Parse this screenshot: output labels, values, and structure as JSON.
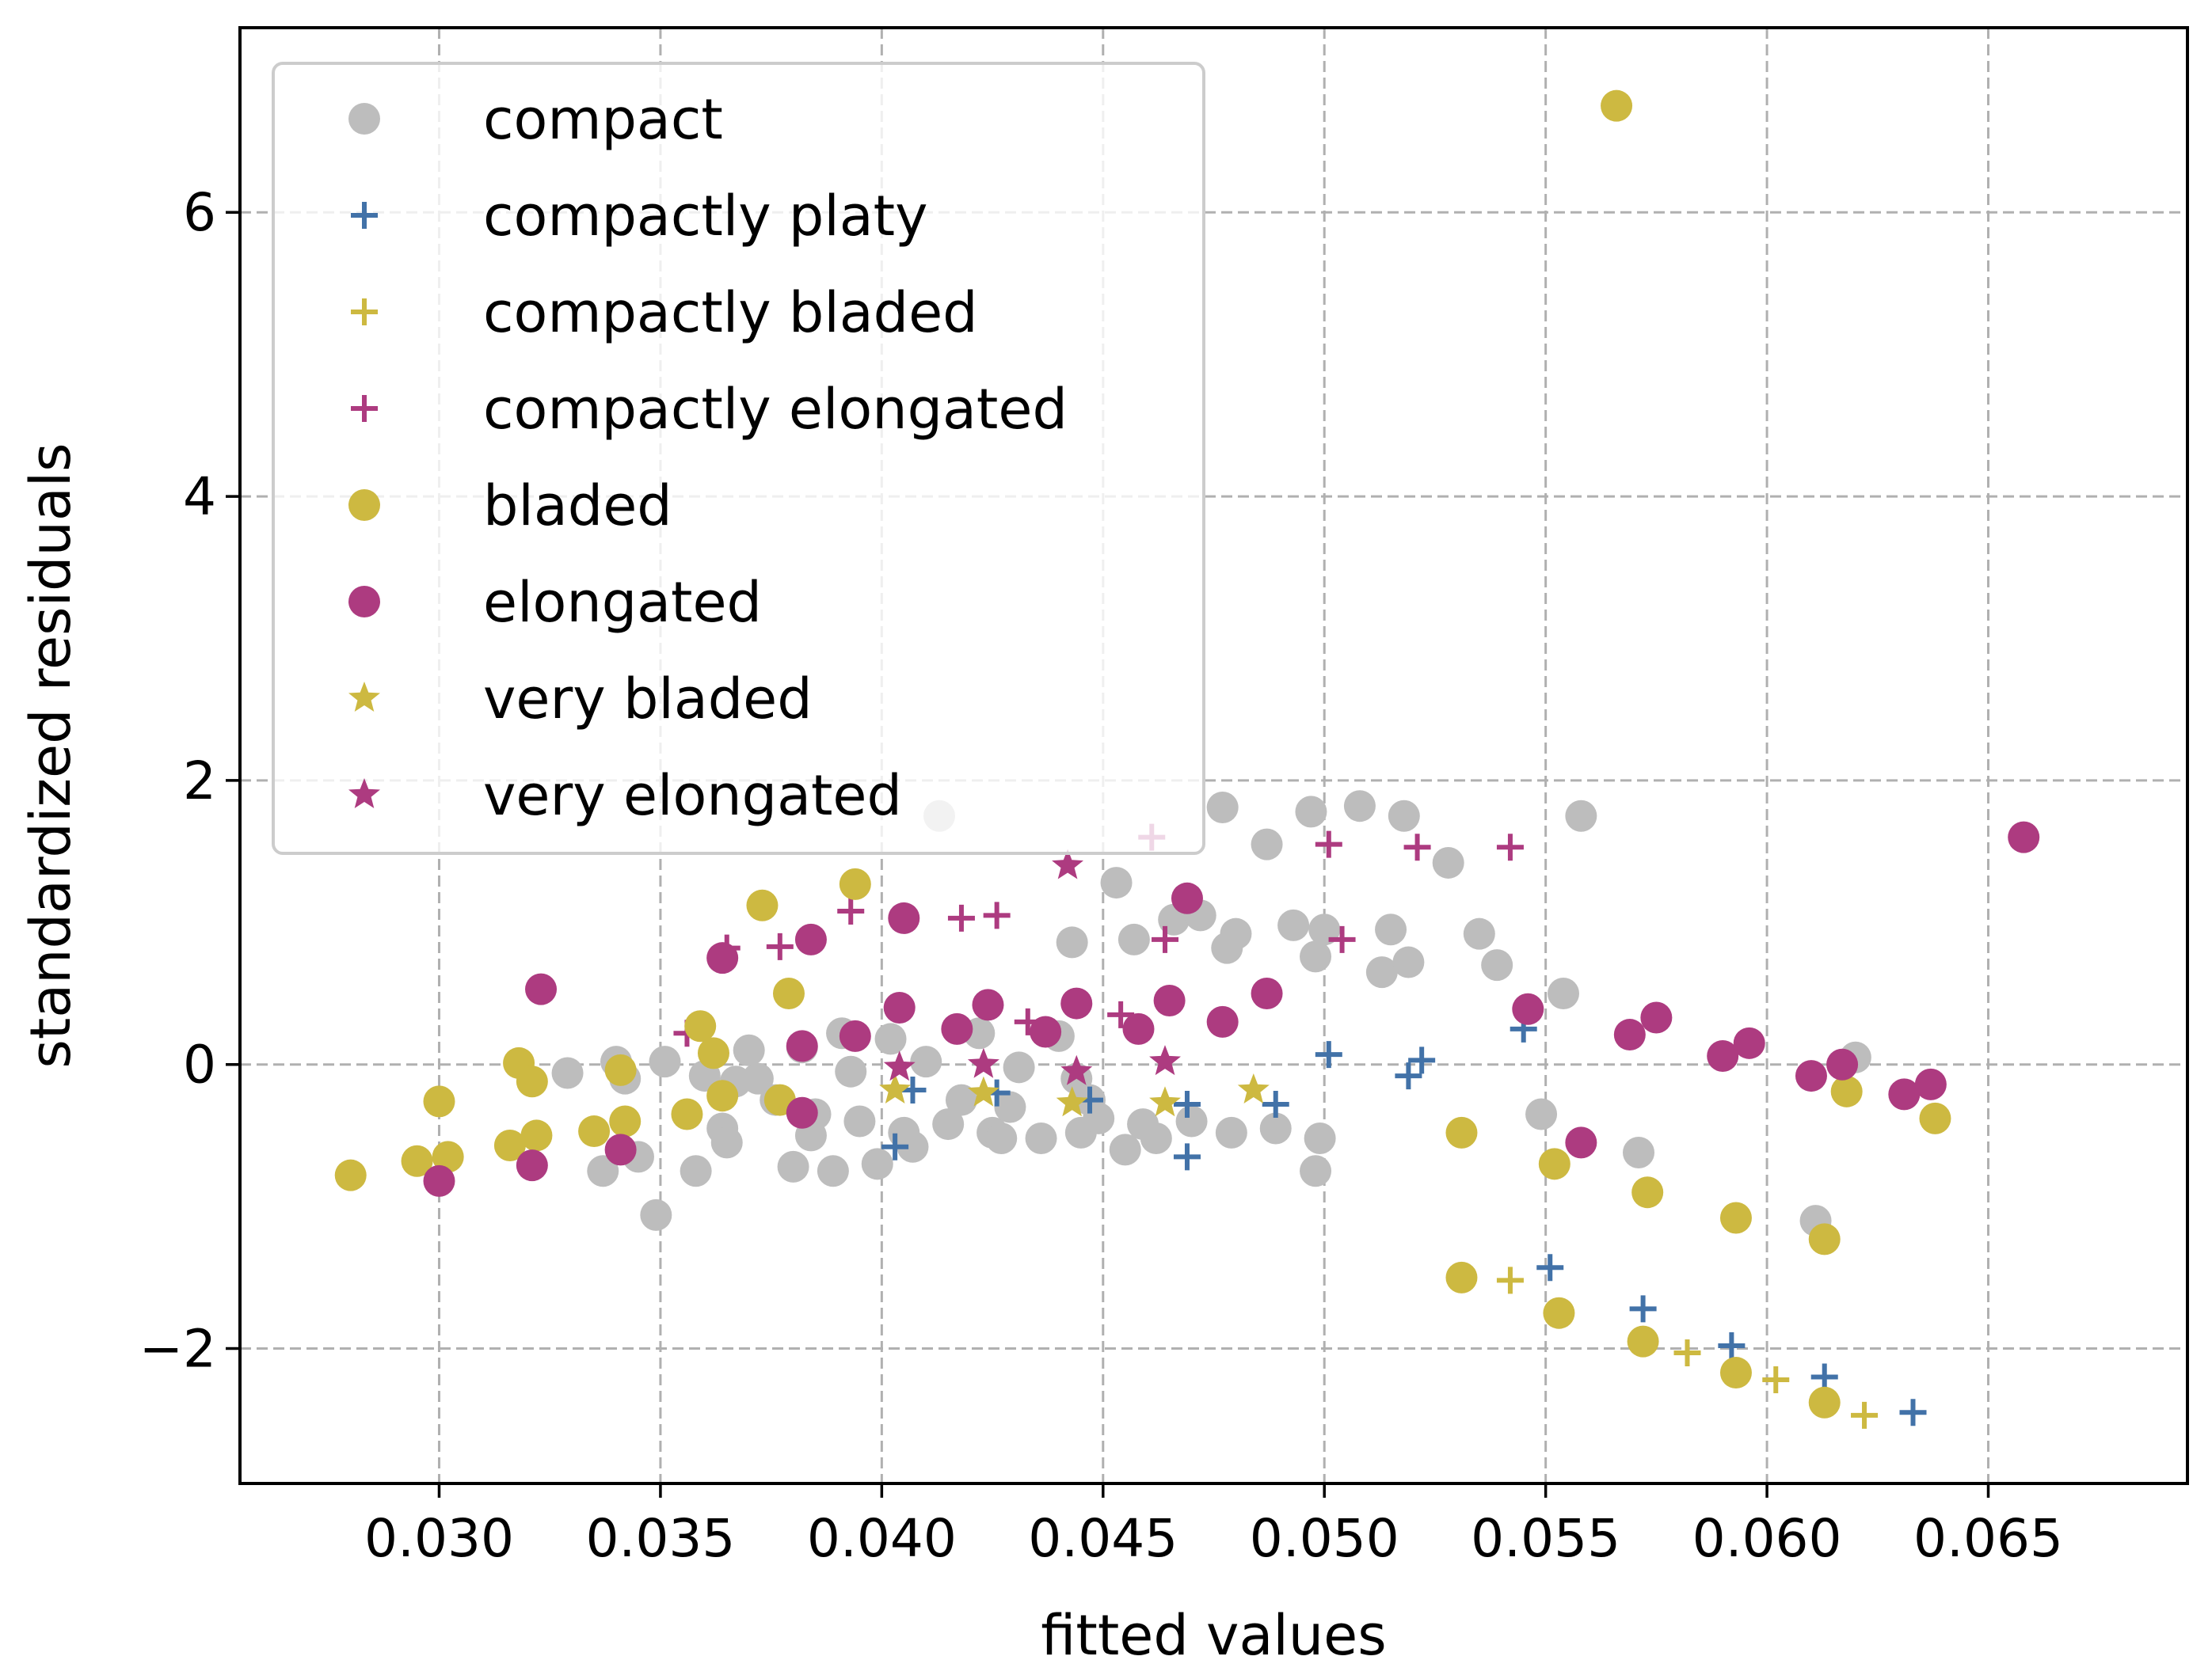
{
  "chart_data": {
    "type": "scatter",
    "title": "",
    "xlabel": "fitted values",
    "ylabel": "standardized residuals",
    "xlim": [
      0.0255,
      0.0695
    ],
    "ylim": [
      -2.95,
      7.3
    ],
    "xticks": [
      0.03,
      0.035,
      0.04,
      0.045,
      0.05,
      0.055,
      0.06,
      0.065
    ],
    "xtick_labels": [
      "0.030",
      "0.035",
      "0.040",
      "0.045",
      "0.050",
      "0.055",
      "0.060",
      "0.065"
    ],
    "yticks": [
      -2,
      0,
      2,
      4,
      6
    ],
    "ytick_labels": [
      "−2",
      "0",
      "2",
      "4",
      "6"
    ],
    "grid": true,
    "legend_position": "upper-left",
    "series": [
      {
        "name": "compact",
        "marker": "circle",
        "color": "#bdbdbd",
        "points": [
          [
            0.0329,
            -0.06
          ],
          [
            0.0337,
            -0.75
          ],
          [
            0.034,
            0.02
          ],
          [
            0.0342,
            -0.1
          ],
          [
            0.0345,
            -0.65
          ],
          [
            0.0349,
            -1.06
          ],
          [
            0.0351,
            0.02
          ],
          [
            0.0358,
            -0.75
          ],
          [
            0.036,
            -0.08
          ],
          [
            0.0364,
            -0.45
          ],
          [
            0.0365,
            -0.55
          ],
          [
            0.0367,
            -0.12
          ],
          [
            0.037,
            0.1
          ],
          [
            0.0372,
            -0.1
          ],
          [
            0.0376,
            -0.25
          ],
          [
            0.038,
            -0.72
          ],
          [
            0.0382,
            0.12
          ],
          [
            0.0384,
            -0.5
          ],
          [
            0.0385,
            -0.35
          ],
          [
            0.0389,
            -0.75
          ],
          [
            0.0391,
            0.22
          ],
          [
            0.0393,
            -0.05
          ],
          [
            0.0395,
            -0.4
          ],
          [
            0.0399,
            -0.7
          ],
          [
            0.0402,
            0.18
          ],
          [
            0.0405,
            -0.48
          ],
          [
            0.0407,
            -0.58
          ],
          [
            0.041,
            0.02
          ],
          [
            0.0413,
            1.75
          ],
          [
            0.0415,
            -0.42
          ],
          [
            0.0418,
            -0.25
          ],
          [
            0.0422,
            0.22
          ],
          [
            0.0425,
            -0.48
          ],
          [
            0.0427,
            -0.52
          ],
          [
            0.0429,
            -0.3
          ],
          [
            0.0431,
            -0.02
          ],
          [
            0.0436,
            -0.52
          ],
          [
            0.044,
            0.2
          ],
          [
            0.0443,
            0.86
          ],
          [
            0.0444,
            -0.1
          ],
          [
            0.0445,
            -0.48
          ],
          [
            0.0447,
            -0.25
          ],
          [
            0.0449,
            -0.38
          ],
          [
            0.0453,
            1.28
          ],
          [
            0.0455,
            -0.6
          ],
          [
            0.0457,
            0.88
          ],
          [
            0.0459,
            -0.42
          ],
          [
            0.0462,
            -0.52
          ],
          [
            0.0466,
            1.02
          ],
          [
            0.047,
            -0.4
          ],
          [
            0.0472,
            1.05
          ],
          [
            0.0477,
            1.81
          ],
          [
            0.0478,
            0.82
          ],
          [
            0.048,
            0.92
          ],
          [
            0.0479,
            -0.48
          ],
          [
            0.0487,
            1.55
          ],
          [
            0.0489,
            -0.45
          ],
          [
            0.0493,
            0.98
          ],
          [
            0.0497,
            1.78
          ],
          [
            0.0498,
            -0.75
          ],
          [
            0.0498,
            0.76
          ],
          [
            0.0499,
            -0.52
          ],
          [
            0.05,
            0.95
          ],
          [
            0.0508,
            1.82
          ],
          [
            0.0513,
            0.65
          ],
          [
            0.0515,
            0.95
          ],
          [
            0.0518,
            1.75
          ],
          [
            0.0519,
            0.72
          ],
          [
            0.0528,
            1.42
          ],
          [
            0.0535,
            0.92
          ],
          [
            0.0539,
            0.7
          ],
          [
            0.0549,
            -0.35
          ],
          [
            0.0554,
            0.5
          ],
          [
            0.0558,
            1.75
          ],
          [
            0.0571,
            -0.62
          ],
          [
            0.0611,
            -1.1
          ],
          [
            0.062,
            0.05
          ]
        ]
      },
      {
        "name": "compactly platy",
        "marker": "plus",
        "color": "#4272a8",
        "points": [
          [
            0.0403,
            -0.58
          ],
          [
            0.0407,
            -0.18
          ],
          [
            0.0426,
            -0.2
          ],
          [
            0.0447,
            -0.25
          ],
          [
            0.0469,
            -0.28
          ],
          [
            0.0469,
            -0.65
          ],
          [
            0.0489,
            -0.28
          ],
          [
            0.0501,
            0.07
          ],
          [
            0.0519,
            -0.08
          ],
          [
            0.0522,
            0.03
          ],
          [
            0.0545,
            0.25
          ],
          [
            0.0551,
            -1.43
          ],
          [
            0.0572,
            -1.72
          ],
          [
            0.0592,
            -1.98
          ],
          [
            0.0613,
            -2.2
          ],
          [
            0.0633,
            -2.45
          ]
        ]
      },
      {
        "name": "compactly bladed",
        "marker": "plus",
        "color": "#cdb941",
        "points": [
          [
            0.0542,
            -1.52
          ],
          [
            0.0582,
            -2.03
          ],
          [
            0.0602,
            -2.22
          ],
          [
            0.0622,
            -2.47
          ]
        ]
      },
      {
        "name": "compactly elongated",
        "marker": "plus",
        "color": "#ad3b80",
        "points": [
          [
            0.0356,
            0.22
          ],
          [
            0.0365,
            0.82
          ],
          [
            0.0377,
            0.83
          ],
          [
            0.0393,
            1.08
          ],
          [
            0.0418,
            1.03
          ],
          [
            0.0426,
            1.05
          ],
          [
            0.0433,
            0.3
          ],
          [
            0.0454,
            0.35
          ],
          [
            0.0461,
            1.6
          ],
          [
            0.0464,
            0.88
          ],
          [
            0.0501,
            1.55
          ],
          [
            0.0504,
            0.88
          ],
          [
            0.0521,
            1.53
          ],
          [
            0.0542,
            1.53
          ]
        ]
      },
      {
        "name": "bladed",
        "marker": "circle",
        "color": "#cdb941",
        "points": [
          [
            0.028,
            -0.78
          ],
          [
            0.0295,
            -0.68
          ],
          [
            0.03,
            -0.26
          ],
          [
            0.0302,
            -0.65
          ],
          [
            0.0316,
            -0.57
          ],
          [
            0.0318,
            0.01
          ],
          [
            0.0321,
            -0.12
          ],
          [
            0.0322,
            -0.5
          ],
          [
            0.0335,
            -0.47
          ],
          [
            0.0341,
            -0.04
          ],
          [
            0.0342,
            -0.4
          ],
          [
            0.0356,
            -0.35
          ],
          [
            0.0359,
            0.27
          ],
          [
            0.0362,
            0.08
          ],
          [
            0.0364,
            -0.22
          ],
          [
            0.0373,
            1.12
          ],
          [
            0.0377,
            -0.25
          ],
          [
            0.0379,
            0.5
          ],
          [
            0.0394,
            1.27
          ],
          [
            0.0531,
            -1.5
          ],
          [
            0.0531,
            -0.48
          ],
          [
            0.0552,
            -0.7
          ],
          [
            0.0553,
            -1.75
          ],
          [
            0.0566,
            6.75
          ],
          [
            0.0572,
            -1.95
          ],
          [
            0.0573,
            -0.9
          ],
          [
            0.0593,
            -1.08
          ],
          [
            0.0593,
            -2.17
          ],
          [
            0.0613,
            -2.38
          ],
          [
            0.0613,
            -1.23
          ],
          [
            0.0618,
            -0.19
          ],
          [
            0.0638,
            -0.38
          ]
        ]
      },
      {
        "name": "elongated",
        "marker": "circle",
        "color": "#ad3b80",
        "points": [
          [
            0.03,
            -0.82
          ],
          [
            0.0321,
            -0.71
          ],
          [
            0.0323,
            0.53
          ],
          [
            0.0341,
            -0.6
          ],
          [
            0.0364,
            0.75
          ],
          [
            0.0382,
            0.13
          ],
          [
            0.0382,
            -0.34
          ],
          [
            0.0384,
            0.88
          ],
          [
            0.0394,
            0.2
          ],
          [
            0.0405,
            1.03
          ],
          [
            0.0404,
            0.4
          ],
          [
            0.0417,
            0.25
          ],
          [
            0.0424,
            0.42
          ],
          [
            0.0437,
            0.23
          ],
          [
            0.0444,
            0.43
          ],
          [
            0.0458,
            0.25
          ],
          [
            0.0465,
            0.45
          ],
          [
            0.0469,
            1.17
          ],
          [
            0.0477,
            0.3
          ],
          [
            0.0487,
            0.5
          ],
          [
            0.0546,
            0.39
          ],
          [
            0.0558,
            -0.55
          ],
          [
            0.0569,
            0.21
          ],
          [
            0.0575,
            0.33
          ],
          [
            0.059,
            0.06
          ],
          [
            0.0596,
            0.15
          ],
          [
            0.061,
            -0.08
          ],
          [
            0.0617,
            0.0
          ],
          [
            0.0631,
            -0.21
          ],
          [
            0.0637,
            -0.14
          ],
          [
            0.0658,
            1.6
          ]
        ]
      },
      {
        "name": "very bladed",
        "marker": "star",
        "color": "#cdb941",
        "points": [
          [
            0.0403,
            -0.18
          ],
          [
            0.0423,
            -0.2
          ],
          [
            0.0443,
            -0.27
          ],
          [
            0.0464,
            -0.27
          ],
          [
            0.0484,
            -0.18
          ]
        ]
      },
      {
        "name": "very elongated",
        "marker": "star",
        "color": "#ad3b80",
        "points": [
          [
            0.0404,
            -0.02
          ],
          [
            0.0423,
            -0.0
          ],
          [
            0.0442,
            1.4
          ],
          [
            0.0444,
            -0.05
          ],
          [
            0.0464,
            0.02
          ]
        ]
      }
    ]
  }
}
